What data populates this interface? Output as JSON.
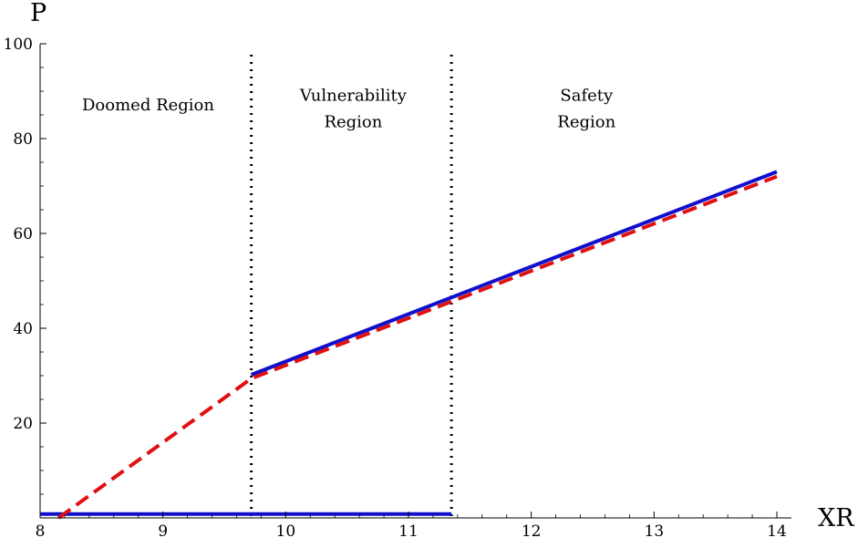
{
  "chart_data": {
    "type": "line",
    "xlabel": "XR",
    "ylabel": "P",
    "xlim": [
      8,
      14
    ],
    "ylim": [
      0,
      100
    ],
    "xticks": [
      8,
      9,
      10,
      11,
      12,
      13,
      14
    ],
    "yticks": [
      20,
      40,
      60,
      80,
      100
    ],
    "grid": false,
    "colors": {
      "solid": "#1010cc",
      "dashed": "#e01010",
      "boundary": "#000000"
    },
    "series": [
      {
        "style": "solid",
        "segments": [
          [
            [
              8.0,
              0.8
            ],
            [
              11.35,
              0.8
            ]
          ],
          [
            [
              9.72,
              30.2
            ],
            [
              14.0,
              73.0
            ]
          ]
        ]
      },
      {
        "style": "dashed",
        "segments": [
          [
            [
              8.15,
              0.0
            ],
            [
              9.72,
              29.4
            ],
            [
              14.0,
              72.0
            ]
          ]
        ]
      }
    ],
    "boundaries": [
      9.72,
      11.35
    ],
    "regions": [
      {
        "lines": [
          "Doomed Region"
        ],
        "x": 8.88,
        "y": 86
      },
      {
        "lines": [
          "Vulnerability",
          "Region"
        ],
        "x": 10.55,
        "y": 88
      },
      {
        "lines": [
          "Safety",
          "Region"
        ],
        "x": 12.45,
        "y": 88
      }
    ]
  }
}
